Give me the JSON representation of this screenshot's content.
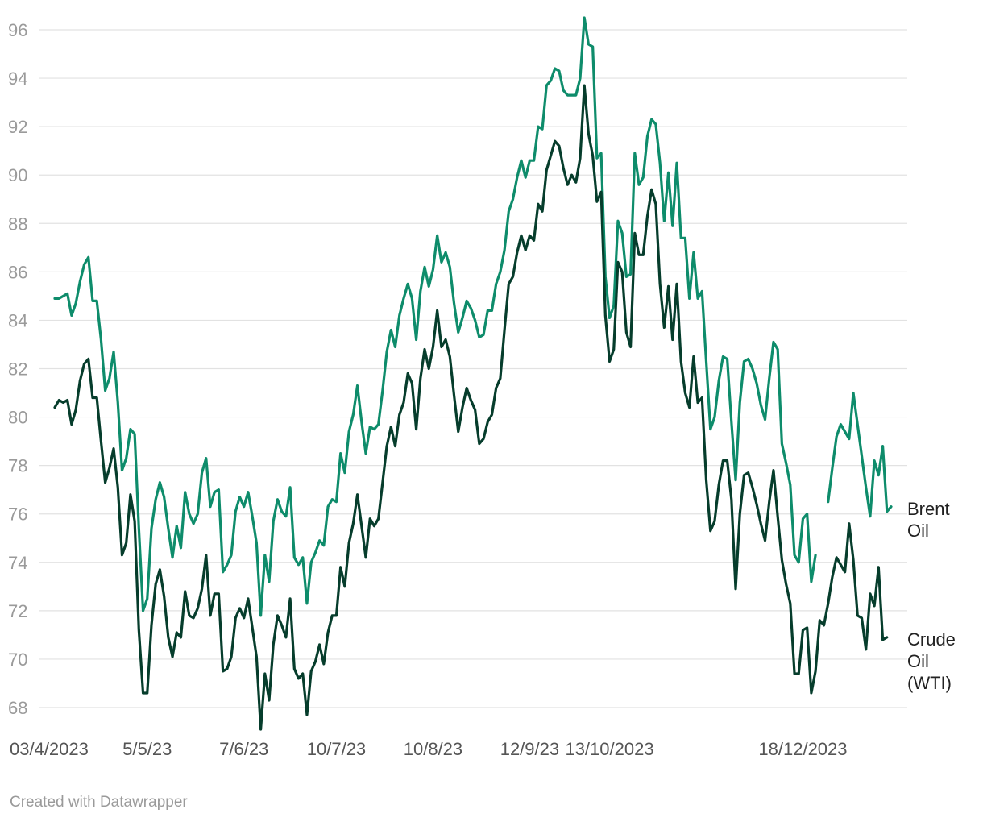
{
  "chart_data": {
    "type": "line",
    "y_ticks": [
      68,
      70,
      72,
      74,
      76,
      78,
      80,
      82,
      84,
      86,
      88,
      90,
      92,
      94,
      96
    ],
    "x_tick_labels": [
      {
        "label": "03/4/2023",
        "index": 0
      },
      {
        "label": "5/5/23",
        "index": 22
      },
      {
        "label": "7/6/23",
        "index": 45
      },
      {
        "label": "10/7/23",
        "index": 67
      },
      {
        "label": "10/8/23",
        "index": 90
      },
      {
        "label": "12/9/23",
        "index": 113
      },
      {
        "label": "13/10/2023",
        "index": 132
      },
      {
        "label": "18/12/2023",
        "index": 178
      }
    ],
    "ylim": [
      67.5,
      96.8
    ],
    "series": [
      {
        "name": "Brent Oil",
        "label_lines": [
          "Brent",
          "Oil"
        ],
        "color": "#0e8c6b",
        "values": [
          84.9,
          84.9,
          85.0,
          85.1,
          84.2,
          84.7,
          85.6,
          86.3,
          86.6,
          84.8,
          84.8,
          83.2,
          81.1,
          81.6,
          82.7,
          80.6,
          77.8,
          78.3,
          79.5,
          79.3,
          75.4,
          72.0,
          72.5,
          75.4,
          76.6,
          77.3,
          76.7,
          75.4,
          74.2,
          75.5,
          74.6,
          76.9,
          76.0,
          75.6,
          76.0,
          77.7,
          78.3,
          76.3,
          76.9,
          77.0,
          73.6,
          73.9,
          74.3,
          76.1,
          76.7,
          76.3,
          76.9,
          75.9,
          74.8,
          71.8,
          74.3,
          73.2,
          75.7,
          76.6,
          76.1,
          75.9,
          77.1,
          74.2,
          73.9,
          74.2,
          72.3,
          74.0,
          74.4,
          74.9,
          74.7,
          76.3,
          76.6,
          76.5,
          78.5,
          77.7,
          79.4,
          80.1,
          81.3,
          79.8,
          78.5,
          79.6,
          79.5,
          79.7,
          81.1,
          82.7,
          83.6,
          82.9,
          84.2,
          84.9,
          85.5,
          84.9,
          83.2,
          85.2,
          86.2,
          85.4,
          86.1,
          87.5,
          86.4,
          86.8,
          86.2,
          84.7,
          83.5,
          84.1,
          84.8,
          84.5,
          84.0,
          83.3,
          83.4,
          84.4,
          84.4,
          85.5,
          86.0,
          86.9,
          88.5,
          89.0,
          89.9,
          90.6,
          89.9,
          90.6,
          90.6,
          92.0,
          91.9,
          93.7,
          93.9,
          94.4,
          94.3,
          93.5,
          93.3,
          93.3,
          93.3,
          94.0,
          96.5,
          95.4,
          95.3,
          90.7,
          90.9,
          85.8,
          84.1,
          84.6,
          88.1,
          87.6,
          85.8,
          85.9,
          90.9,
          89.6,
          89.9,
          91.6,
          92.3,
          92.1,
          90.5,
          88.1,
          90.1,
          87.9,
          90.5,
          87.4,
          87.4,
          84.9,
          86.8,
          84.9,
          85.2,
          82.3,
          79.5,
          80.0,
          81.5,
          82.5,
          82.4,
          79.8,
          77.4,
          80.6,
          82.3,
          82.4,
          82.0,
          81.4,
          80.5,
          79.9,
          81.6,
          83.1,
          82.8,
          78.9,
          78.1,
          77.2,
          74.3,
          74.0,
          75.8,
          76.0,
          73.2,
          74.3,
          null,
          null,
          76.5,
          77.9,
          79.2,
          79.7,
          79.4,
          79.1,
          81.0,
          79.7,
          78.4,
          77.1,
          75.9,
          78.2,
          77.6,
          78.8,
          76.1,
          76.3
        ]
      },
      {
        "name": "Crude Oil (WTI)",
        "label_lines": [
          "Crude",
          "Oil",
          "(WTI)"
        ],
        "color": "#063d2c",
        "values": [
          80.4,
          80.7,
          80.6,
          80.7,
          79.7,
          80.3,
          81.5,
          82.2,
          82.4,
          80.8,
          80.8,
          79.0,
          77.3,
          77.9,
          78.7,
          77.1,
          74.3,
          74.8,
          76.8,
          75.7,
          71.2,
          68.6,
          68.6,
          71.4,
          73.1,
          73.7,
          72.6,
          70.9,
          70.1,
          71.1,
          70.9,
          72.8,
          71.8,
          71.7,
          72.1,
          72.9,
          74.3,
          71.8,
          72.7,
          72.7,
          69.5,
          69.6,
          70.1,
          71.7,
          72.1,
          71.7,
          72.5,
          71.3,
          70.1,
          67.1,
          69.4,
          68.3,
          70.6,
          71.8,
          71.4,
          70.9,
          72.5,
          69.6,
          69.2,
          69.4,
          67.7,
          69.5,
          69.9,
          70.6,
          69.8,
          71.1,
          71.8,
          71.8,
          73.8,
          73.0,
          74.8,
          75.6,
          76.8,
          75.5,
          74.2,
          75.8,
          75.5,
          75.8,
          77.3,
          78.8,
          79.6,
          78.8,
          80.1,
          80.6,
          81.8,
          81.4,
          79.5,
          81.6,
          82.8,
          82.0,
          82.9,
          84.4,
          82.9,
          83.2,
          82.5,
          80.9,
          79.4,
          80.4,
          81.2,
          80.7,
          80.3,
          78.9,
          79.1,
          79.8,
          80.1,
          81.2,
          81.6,
          83.6,
          85.5,
          85.8,
          86.8,
          87.5,
          86.9,
          87.5,
          87.3,
          88.8,
          88.5,
          90.2,
          90.8,
          91.4,
          91.2,
          90.3,
          89.6,
          90.0,
          89.7,
          90.7,
          93.7,
          91.7,
          90.8,
          88.9,
          89.3,
          84.2,
          82.3,
          82.8,
          86.4,
          86.0,
          83.5,
          82.9,
          87.6,
          86.7,
          86.7,
          88.3,
          89.4,
          88.8,
          85.5,
          83.7,
          85.4,
          83.2,
          85.5,
          82.3,
          81.0,
          80.4,
          82.5,
          80.6,
          80.8,
          77.4,
          75.3,
          75.7,
          77.2,
          78.2,
          78.2,
          76.6,
          72.9,
          76.0,
          77.6,
          77.7,
          77.1,
          76.4,
          75.6,
          74.9,
          76.5,
          77.8,
          75.9,
          74.1,
          73.1,
          72.3,
          69.4,
          69.4,
          71.2,
          71.3,
          68.6,
          69.5,
          71.6,
          71.4,
          72.3,
          73.4,
          74.2,
          73.9,
          73.6,
          75.6,
          74.1,
          71.8,
          71.7,
          70.4,
          72.7,
          72.2,
          73.8,
          70.8,
          70.9
        ]
      }
    ]
  },
  "footer": {
    "credit": "Created with Datawrapper"
  }
}
